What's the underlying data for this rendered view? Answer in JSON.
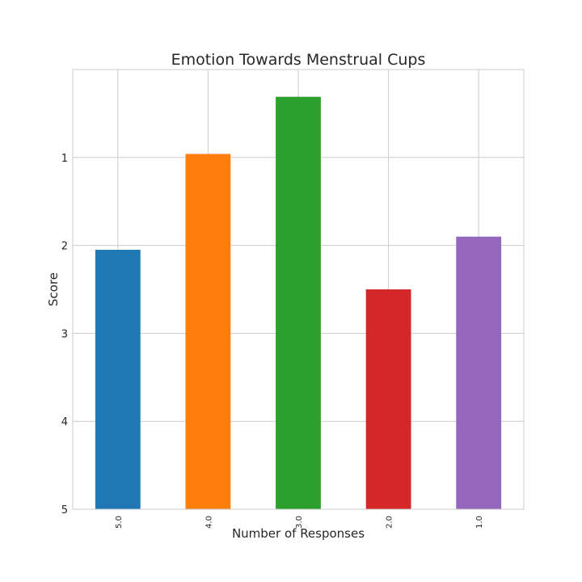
{
  "chart_data": {
    "type": "bar",
    "title": "Emotion Towards Menstrual Cups",
    "xlabel": "Number of Responses",
    "ylabel": "Score",
    "categories": [
      "5.0",
      "4.0",
      "3.0",
      "2.0",
      "1.0"
    ],
    "values": [
      2.05,
      0.96,
      0.31,
      2.5,
      1.9
    ],
    "bar_colors": [
      "#1f77b4",
      "#ff7f0e",
      "#2ca02c",
      "#d62728",
      "#9467bd"
    ],
    "y_axis_inverted": true,
    "ylim": [
      0.0,
      5.0
    ],
    "yticks": [
      "1",
      "2",
      "3",
      "4",
      "5"
    ],
    "grid": true,
    "grid_color": "#cccccc",
    "legend": false
  }
}
